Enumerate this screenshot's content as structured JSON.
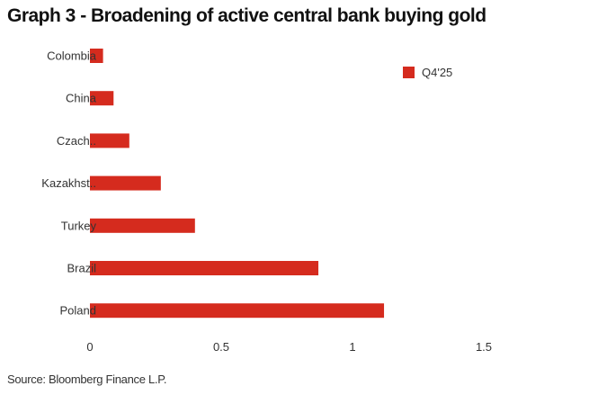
{
  "chart_data": {
    "type": "bar",
    "orientation": "horizontal",
    "title": "Graph 3 - Broadening of active central bank buying gold",
    "source": "Source: Bloomberg Finance L.P.",
    "categories": [
      "Colombia",
      "China",
      "Czach..",
      "Kazakhst..",
      "Turkey",
      "Brazil",
      "Poland"
    ],
    "series": [
      {
        "name": "Q4'25",
        "color": "#d52b1e",
        "values": [
          0.05,
          0.09,
          0.15,
          0.27,
          0.4,
          0.87,
          1.12
        ]
      }
    ],
    "x_ticks": [
      "0",
      "0.5",
      "1",
      "1.5"
    ],
    "xlim": [
      0,
      1.5
    ],
    "grid": false,
    "legend_position": "top-right"
  }
}
